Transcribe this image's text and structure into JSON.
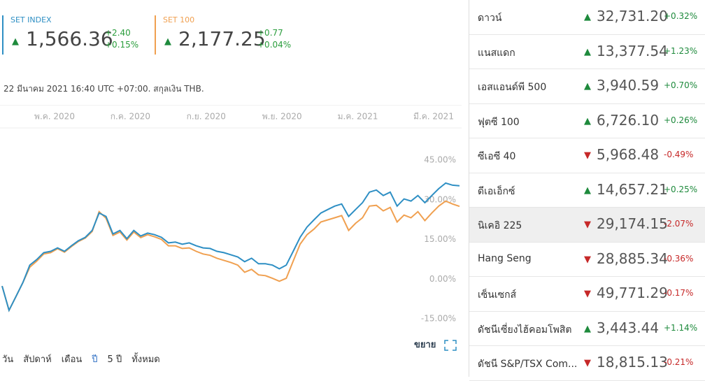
{
  "indices": [
    {
      "name": "SET INDEX",
      "color": "#2e8fc4",
      "direction": "up",
      "price": "1,566.36",
      "change": "+2.40",
      "change_pct": "+0.15%"
    },
    {
      "name": "SET 100",
      "color": "#f0a050",
      "direction": "up",
      "price": "2,177.25",
      "change": "+0.77",
      "change_pct": "+0.04%"
    }
  ],
  "timestamp": "22 มีนาคม 2021 16:40 UTC +07:00. สกุลเงิน THB.",
  "chart_data": {
    "type": "line",
    "x_labels": [
      "พ.ค. 2020",
      "ก.ค. 2020",
      "ก.ย. 2020",
      "พ.ย. 2020",
      "ม.ค. 2021",
      "มี.ค. 2021"
    ],
    "ylim": [
      -15,
      45
    ],
    "yticks": [
      {
        "value": 45,
        "label": "45.00%"
      },
      {
        "value": 30,
        "label": "30.00%"
      },
      {
        "value": 15,
        "label": "15.00%"
      },
      {
        "value": 0,
        "label": "0.00%"
      },
      {
        "value": -15,
        "label": "-15.00%"
      }
    ],
    "grid": false,
    "series": [
      {
        "name": "SET INDEX",
        "color": "#2e8fc4",
        "values": [
          -2.6,
          -11.8,
          -6.6,
          -1.3,
          5.3,
          7.4,
          10,
          10.5,
          11.8,
          10.5,
          12.6,
          14.5,
          15.8,
          18.4,
          25,
          23.7,
          17.1,
          18.4,
          15.3,
          18.4,
          16.3,
          17.4,
          16.8,
          15.8,
          13.7,
          14,
          13.2,
          13.7,
          12.6,
          11.8,
          11.6,
          10.5,
          10,
          9.2,
          8.4,
          6.6,
          7.9,
          5.8,
          5.8,
          5.3,
          3.9,
          5.3,
          10.5,
          15.8,
          19.7,
          22.4,
          25,
          26.3,
          27.6,
          28.4,
          23.7,
          26.3,
          28.9,
          32.9,
          33.7,
          31.6,
          32.9,
          27.6,
          30.3,
          29.5,
          31.6,
          28.9,
          31.6,
          34.2,
          36.3,
          35.5,
          35.3
        ]
      },
      {
        "name": "SET 100",
        "color": "#f0a050",
        "values": [
          -2.6,
          -11.8,
          -6.6,
          -1.3,
          4.5,
          6.8,
          9.5,
          10,
          11.5,
          10.2,
          12.3,
          14.2,
          15.5,
          18,
          25.5,
          23,
          16.5,
          17.8,
          14.8,
          17.8,
          15.7,
          16.8,
          16,
          15,
          12.6,
          12.6,
          11.6,
          11.8,
          10.5,
          9.5,
          9,
          7.9,
          7.1,
          6.3,
          5.3,
          2.6,
          3.7,
          1.6,
          1.3,
          0.3,
          -0.8,
          0.3,
          6.8,
          13.2,
          16.8,
          18.9,
          21.6,
          22.4,
          23.2,
          24,
          18.4,
          21.1,
          23.2,
          27.6,
          27.9,
          25.8,
          27.1,
          21.6,
          24.2,
          23.2,
          25.5,
          22.1,
          25,
          27.6,
          29.5,
          28.4,
          27.5
        ]
      }
    ]
  },
  "expand": "ขยาย",
  "ranges": [
    "วัน",
    "สัปดาห์",
    "เดือน",
    "ปี",
    "5 ปี",
    "ทั้งหมด"
  ],
  "markets": [
    {
      "name": "ดาวน์",
      "direction": "up",
      "price": "32,731.20",
      "change_pct": "+0.32%"
    },
    {
      "name": "แนสแดก",
      "direction": "up",
      "price": "13,377.54",
      "change_pct": "+1.23%"
    },
    {
      "name": "เอสแอนด์พี 500",
      "direction": "up",
      "price": "3,940.59",
      "change_pct": "+0.70%"
    },
    {
      "name": "ฟุตซี 100",
      "direction": "up",
      "price": "6,726.10",
      "change_pct": "+0.26%"
    },
    {
      "name": "ซีเอซี 40",
      "direction": "down",
      "price": "5,968.48",
      "change_pct": "-0.49%"
    },
    {
      "name": "ดีเอเอ็กซ์",
      "direction": "up",
      "price": "14,657.21",
      "change_pct": "+0.25%"
    },
    {
      "name": "นิเคอิ 225",
      "direction": "down",
      "price": "29,174.15",
      "change_pct": "-2.07%"
    },
    {
      "name": "Hang Seng",
      "direction": "down",
      "price": "28,885.34",
      "change_pct": "-0.36%"
    },
    {
      "name": "เซ็นเซกส์",
      "direction": "down",
      "price": "49,771.29",
      "change_pct": "-0.17%"
    },
    {
      "name": "ดัชนีเซี่ยงไฮ้คอมโพสิต",
      "direction": "up",
      "price": "3,443.44",
      "change_pct": "+1.14%"
    },
    {
      "name": "ดัชนี S&P/TSX Com...",
      "direction": "down",
      "price": "18,815.13",
      "change_pct": "-0.21%"
    }
  ]
}
